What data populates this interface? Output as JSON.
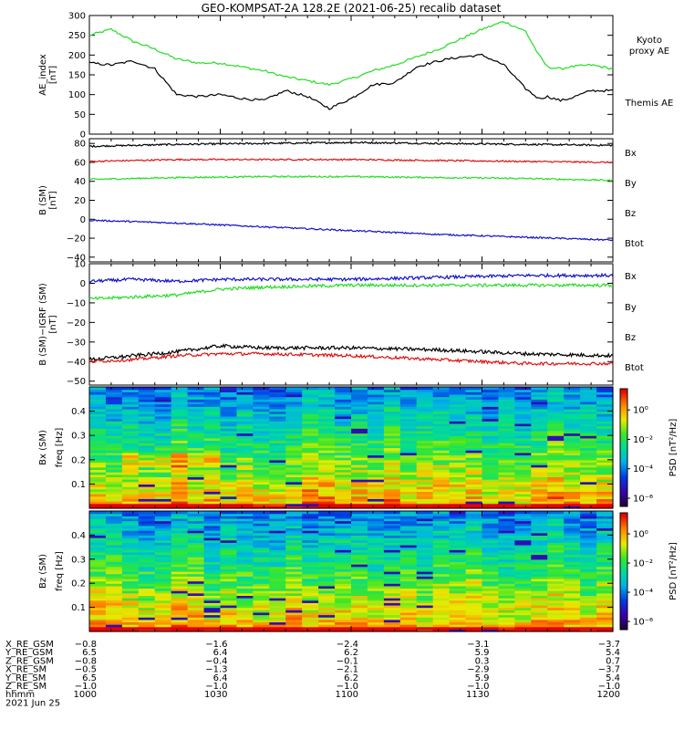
{
  "title": "GEO-KOMPSAT-2A 128.2E (2021-06-25) recalib dataset",
  "colors": {
    "black": "#000000",
    "red": "#dd1111",
    "green": "#22dd22",
    "blue": "#1111cc"
  },
  "chart_data": [
    {
      "type": "line",
      "panel": "ae",
      "ylabel": [
        "AE_index",
        "[nT]"
      ],
      "ylim": [
        0,
        300
      ],
      "yticks": [
        0,
        50,
        100,
        150,
        200,
        250,
        300
      ],
      "x_unit": "minutes since 10:00 UT",
      "xlim": [
        0,
        120
      ],
      "series": [
        {
          "name": "Kyoto proxy AE",
          "label": [
            "Kyoto",
            "proxy AE"
          ],
          "color": "#22dd22",
          "x": [
            0,
            5,
            10,
            15,
            20,
            25,
            30,
            35,
            40,
            45,
            50,
            55,
            60,
            65,
            70,
            75,
            80,
            85,
            90,
            95,
            100,
            103,
            105,
            108,
            110,
            115,
            120
          ],
          "y": [
            250,
            265,
            235,
            215,
            190,
            180,
            180,
            170,
            160,
            145,
            135,
            125,
            140,
            160,
            175,
            195,
            215,
            240,
            265,
            285,
            260,
            200,
            170,
            165,
            170,
            175,
            165
          ]
        },
        {
          "name": "Themis AE",
          "label": [
            "Themis AE"
          ],
          "color": "#000000",
          "x": [
            0,
            5,
            10,
            15,
            20,
            25,
            30,
            35,
            40,
            45,
            50,
            55,
            60,
            65,
            70,
            75,
            80,
            85,
            90,
            95,
            100,
            103,
            105,
            108,
            110,
            115,
            120
          ],
          "y": [
            180,
            175,
            185,
            165,
            100,
            95,
            100,
            90,
            85,
            110,
            95,
            65,
            90,
            125,
            130,
            170,
            185,
            195,
            200,
            175,
            115,
            90,
            95,
            85,
            90,
            110,
            110
          ]
        }
      ]
    },
    {
      "type": "line",
      "panel": "bsm",
      "ylabel": [
        "B (SM)",
        "[nT]"
      ],
      "ylim": [
        -45,
        85
      ],
      "yticks": [
        -40,
        -20,
        0,
        20,
        40,
        60,
        80
      ],
      "x_unit": "minutes since 10:00 UT",
      "xlim": [
        0,
        120
      ],
      "series": [
        {
          "name": "Btot",
          "color": "#000000",
          "x": [
            0,
            20,
            40,
            60,
            80,
            100,
            120
          ],
          "y": [
            77,
            79,
            80,
            81,
            80,
            79,
            78
          ]
        },
        {
          "name": "Bz",
          "color": "#dd1111",
          "x": [
            0,
            20,
            40,
            60,
            80,
            100,
            120
          ],
          "y": [
            61,
            63,
            63,
            63,
            62,
            61,
            60
          ]
        },
        {
          "name": "By",
          "color": "#22dd22",
          "x": [
            0,
            20,
            40,
            60,
            80,
            100,
            120
          ],
          "y": [
            42,
            44,
            45,
            45,
            44,
            43,
            41
          ]
        },
        {
          "name": "Bx",
          "color": "#1111cc",
          "x": [
            0,
            20,
            40,
            60,
            80,
            100,
            120
          ],
          "y": [
            -1,
            -4,
            -8,
            -12,
            -16,
            -19,
            -22
          ]
        }
      ],
      "legend": [
        {
          "label": "Bx",
          "color": "#1111cc"
        },
        {
          "label": "By",
          "color": "#22dd22"
        },
        {
          "label": "Bz",
          "color": "#dd1111"
        },
        {
          "label": "Btot",
          "color": "#000000"
        }
      ]
    },
    {
      "type": "line",
      "panel": "dbsm",
      "ylabel": [
        "B (SM)−IGRF (SM)",
        "[nT]"
      ],
      "ylim": [
        -52,
        10
      ],
      "yticks": [
        -50,
        -40,
        -30,
        -20,
        -10,
        0,
        10
      ],
      "x_unit": "minutes since 10:00 UT",
      "xlim": [
        0,
        120
      ],
      "series": [
        {
          "name": "Bx",
          "color": "#1111cc",
          "x": [
            0,
            10,
            20,
            30,
            40,
            60,
            80,
            100,
            120
          ],
          "y": [
            1,
            2,
            1,
            2,
            2,
            2,
            3,
            4,
            4
          ]
        },
        {
          "name": "By",
          "color": "#22dd22",
          "x": [
            0,
            10,
            20,
            30,
            40,
            60,
            80,
            100,
            120
          ],
          "y": [
            -8,
            -7,
            -6,
            -3,
            -2,
            -1,
            -1,
            -1,
            -1
          ]
        },
        {
          "name": "Btot",
          "color": "#000000",
          "x": [
            0,
            10,
            20,
            30,
            40,
            60,
            80,
            100,
            120
          ],
          "y": [
            -39,
            -37,
            -35,
            -32,
            -33,
            -33,
            -34,
            -36,
            -37
          ]
        },
        {
          "name": "Bz",
          "color": "#dd1111",
          "x": [
            0,
            10,
            20,
            30,
            40,
            60,
            80,
            100,
            120
          ],
          "y": [
            -40,
            -39,
            -37,
            -36,
            -36,
            -37,
            -39,
            -41,
            -41
          ]
        }
      ],
      "legend": [
        {
          "label": "Bx",
          "color": "#1111cc"
        },
        {
          "label": "By",
          "color": "#22dd22"
        },
        {
          "label": "Bz",
          "color": "#dd1111"
        },
        {
          "label": "Btot",
          "color": "#000000"
        }
      ]
    },
    {
      "type": "heatmap",
      "panel": "bxspec",
      "ylabel": [
        "Bx (SM)",
        "freq  [Hz]"
      ],
      "ylim": [
        0,
        0.5
      ],
      "yticks": [
        0.1,
        0.2,
        0.3,
        0.4
      ],
      "colorbar": {
        "label": "PSD  [nT²/Hz]",
        "ticks": [
          "10⁰",
          "10⁻²",
          "10⁻⁴",
          "10⁻⁶"
        ]
      }
    },
    {
      "type": "heatmap",
      "panel": "bzspec",
      "ylabel": [
        "Bz (SM)",
        "freq  [Hz]"
      ],
      "ylim": [
        0,
        0.5
      ],
      "yticks": [
        0.1,
        0.2,
        0.3,
        0.4
      ],
      "colorbar": {
        "label": "PSD  [nT²/Hz]",
        "ticks": [
          "10⁰",
          "10⁻²",
          "10⁻⁴",
          "10⁻⁶"
        ]
      }
    }
  ],
  "ephemeris": {
    "labels": [
      "X_RE_GSM",
      "Y_RE_GSM",
      "Z_RE_GSM",
      "X_RE_SM",
      "Y_RE_SM",
      "Z_RE_SM",
      "hhmm",
      "2021 Jun 25"
    ],
    "columns": [
      [
        "−0.8",
        "6.5",
        "−0.8",
        "−0.5",
        "6.5",
        "−1.0",
        "1000"
      ],
      [
        "−1.6",
        "6.4",
        "−0.4",
        "−1.3",
        "6.4",
        "−1.0",
        "1030"
      ],
      [
        "−2.4",
        "6.2",
        "−0.1",
        "−2.1",
        "6.2",
        "−1.0",
        "1100"
      ],
      [
        "−3.1",
        "5.9",
        "0.3",
        "−2.9",
        "5.9",
        "−1.0",
        "1130"
      ],
      [
        "−3.7",
        "5.4",
        "0.7",
        "−3.7",
        "5.4",
        "−1.0",
        "1200"
      ]
    ]
  }
}
